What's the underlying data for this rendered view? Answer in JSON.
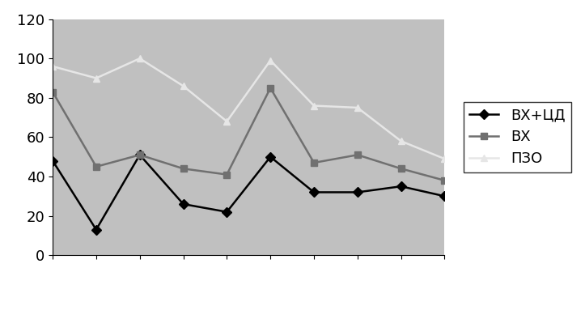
{
  "chart_data": {
    "type": "line",
    "categories": [
      null,
      null,
      null,
      null,
      null,
      null,
      null,
      null,
      null,
      null
    ],
    "series": [
      {
        "name": "ВХ+ЦД",
        "color": "#000000",
        "marker": "diamond",
        "line_style": "solid",
        "values": [
          48,
          13,
          51,
          26,
          22,
          50,
          32,
          32,
          35,
          30
        ]
      },
      {
        "name": "ВХ",
        "color": "#707070",
        "marker": "square",
        "line_style": "solid",
        "values": [
          83,
          45,
          51,
          44,
          41,
          85,
          47,
          51,
          44,
          38
        ]
      },
      {
        "name": "ПЗО",
        "color": "#e6e6e6",
        "marker": "triangle",
        "line_style": "solid",
        "values": [
          96,
          90,
          100,
          86,
          68,
          99,
          76,
          75,
          58,
          49
        ]
      }
    ],
    "ylim": [
      0,
      120
    ],
    "yticks": [
      0,
      20,
      40,
      60,
      80,
      100,
      120
    ],
    "grid": false,
    "legend": "right",
    "tick_labels": "y"
  }
}
